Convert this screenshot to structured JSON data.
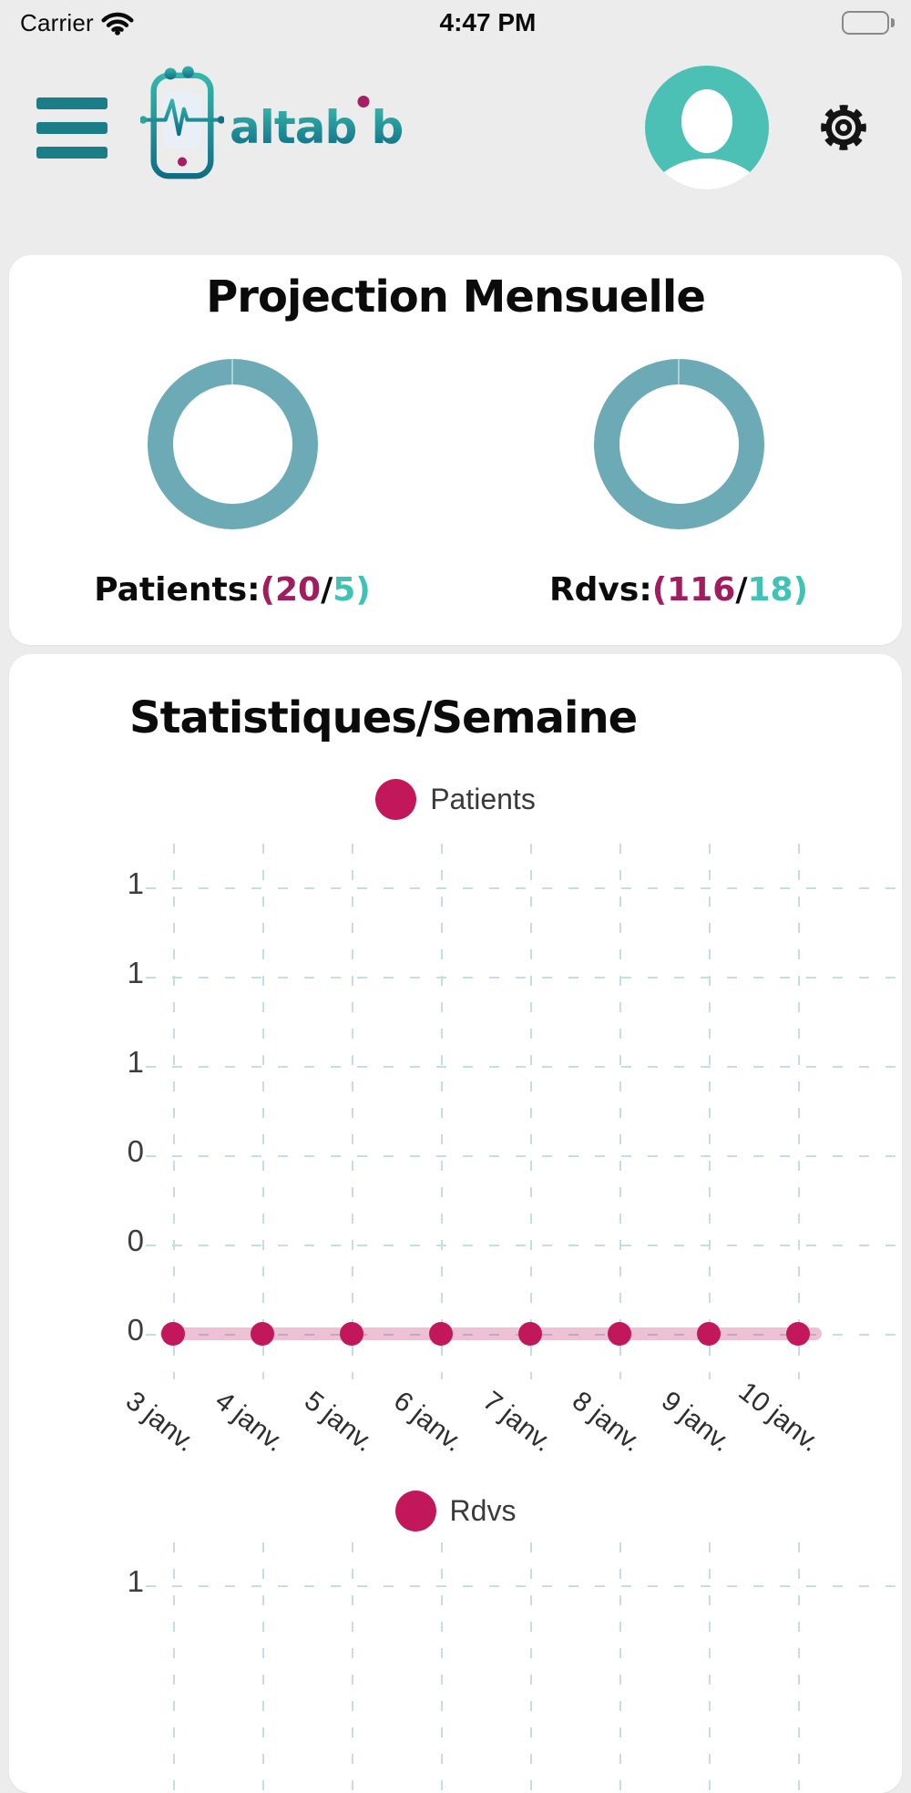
{
  "status_bar": {
    "carrier": "Carrier",
    "time": "4:47 PM"
  },
  "header": {
    "logo": {
      "full": "altabib",
      "pre": "altab",
      "i_dotless": "ı",
      "post": "b"
    },
    "icons": {
      "menu": "hamburger-menu-icon",
      "logo_phone": "phone-heartbeat-logo-icon",
      "profile": "user-avatar-icon",
      "settings": "gear-icon",
      "wifi": "wifi-icon",
      "battery": "battery-icon"
    }
  },
  "projection_card": {
    "title": "Projection Mensuelle",
    "stats": [
      {
        "name": "Patients",
        "label": "Patients:",
        "open_primary": "(20",
        "slash": "/",
        "secondary_close": "5)"
      },
      {
        "name": "Rdvs",
        "label": "Rdvs:",
        "open_primary": "(116",
        "slash": "/",
        "secondary_close": "18)"
      }
    ]
  },
  "stats_card": {
    "title": "Statistiques/Semaine"
  },
  "chart_data": [
    {
      "type": "line",
      "name": "patients-per-week",
      "legend": [
        "Patients"
      ],
      "legend_position": "top",
      "x": [
        "3 janv.",
        "4 janv.",
        "5 janv.",
        "6 janv.",
        "7 janv.",
        "8 janv.",
        "9 janv.",
        "10 janv."
      ],
      "series": [
        {
          "name": "Patients",
          "values": [
            0,
            0,
            0,
            0,
            0,
            0,
            0,
            0
          ]
        }
      ],
      "ytick_labels": [
        "1",
        "1",
        "1",
        "0",
        "0",
        "0"
      ],
      "ylim": [
        0,
        1.25
      ],
      "grid": true,
      "grid_style": "dashed",
      "line_color": "#C2185B"
    },
    {
      "type": "line",
      "name": "rdvs-per-week",
      "legend": [
        "Rdvs"
      ],
      "legend_position": "top",
      "ytick_labels_visible": [
        "1"
      ],
      "vertical_gridline_count": 8,
      "grid": true,
      "grid_style": "dashed",
      "line_color": "#C2185B",
      "note": "chart partially visible, cut off at bottom edge of screen"
    }
  ],
  "colors": {
    "page_bg": "#ECECEC",
    "teal_dark": "#1B7D88",
    "avatar_teal": "#4DC0B5",
    "donut_teal": "#6CABB5",
    "stat_magenta": "#A11D5F",
    "stat_teal": "#3FC3B6",
    "series_pink": "#C2185B",
    "grid": "#C3DFE4",
    "logo_dot_magenta": "#A81E62"
  }
}
